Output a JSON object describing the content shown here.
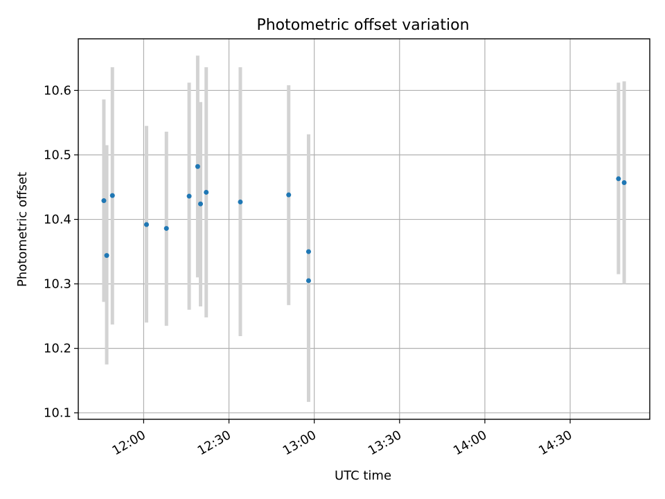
{
  "chart_data": {
    "type": "scatter",
    "title": "Photometric offset variation",
    "xlabel": "UTC time",
    "ylabel": "Photometric offset",
    "x_ticks": [
      "12:00",
      "12:30",
      "13:00",
      "13:30",
      "14:00",
      "14:30"
    ],
    "y_ticks": [
      "10.1",
      "10.2",
      "10.3",
      "10.4",
      "10.5",
      "10.6"
    ],
    "xlim": [
      "11:37",
      "14:58"
    ],
    "ylim": [
      10.09,
      10.68
    ],
    "grid": true,
    "marker_color": "#1f77b4",
    "errorbar_color": "#d3d3d3",
    "points": [
      {
        "time": "11:46",
        "y": 10.429,
        "err_low": 10.272,
        "err_high": 10.586
      },
      {
        "time": "11:47",
        "y": 10.344,
        "err_low": 10.175,
        "err_high": 10.515
      },
      {
        "time": "11:49",
        "y": 10.437,
        "err_low": 10.237,
        "err_high": 10.636
      },
      {
        "time": "12:01",
        "y": 10.392,
        "err_low": 10.24,
        "err_high": 10.545
      },
      {
        "time": "12:08",
        "y": 10.386,
        "err_low": 10.235,
        "err_high": 10.536
      },
      {
        "time": "12:16",
        "y": 10.436,
        "err_low": 10.26,
        "err_high": 10.612
      },
      {
        "time": "12:19",
        "y": 10.482,
        "err_low": 10.31,
        "err_high": 10.654
      },
      {
        "time": "12:20",
        "y": 10.424,
        "err_low": 10.265,
        "err_high": 10.582
      },
      {
        "time": "12:22",
        "y": 10.442,
        "err_low": 10.248,
        "err_high": 10.636
      },
      {
        "time": "12:34",
        "y": 10.427,
        "err_low": 10.219,
        "err_high": 10.636
      },
      {
        "time": "12:51",
        "y": 10.438,
        "err_low": 10.267,
        "err_high": 10.608
      },
      {
        "time": "12:58",
        "y": 10.305,
        "err_low": 10.117,
        "err_high": 10.493
      },
      {
        "time": "12:58",
        "y": 10.35,
        "err_low": 10.168,
        "err_high": 10.532
      },
      {
        "time": "14:47",
        "y": 10.463,
        "err_low": 10.315,
        "err_high": 10.612
      },
      {
        "time": "14:49",
        "y": 10.457,
        "err_low": 10.3,
        "err_high": 10.614
      }
    ]
  }
}
